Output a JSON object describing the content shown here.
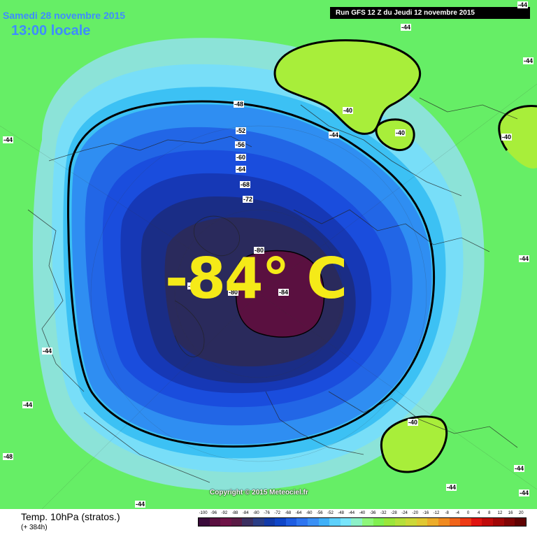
{
  "header": {
    "date": "Samedi 28 novembre 2015",
    "time": "13:00 locale",
    "run": "Run GFS 12 Z du Jeudi 12 novembre 2015"
  },
  "annotation": {
    "big_value": "-84° C"
  },
  "copyright": "Copyright © 2015 Meteociel.fr",
  "contour_labels": {
    "m44": "-44",
    "m48": "-48",
    "m52": "-52",
    "m56": "-56",
    "m60": "-60",
    "m64": "-64",
    "m68": "-68",
    "m72": "-72",
    "m76": "-76",
    "m80": "-80",
    "m84": "-84",
    "m40": "-40"
  },
  "footer": {
    "title": "Temp. 10hPa (stratos.)",
    "subtitle": "(+ 384h)"
  },
  "legend": {
    "ticks": [
      "-100",
      "-96",
      "-92",
      "-88",
      "-84",
      "-80",
      "-76",
      "-72",
      "-68",
      "-64",
      "-60",
      "-56",
      "-52",
      "-48",
      "-44",
      "-40",
      "-36",
      "-32",
      "-28",
      "-24",
      "-20",
      "-16",
      "-12",
      "-8",
      "-4",
      "0",
      "4",
      "8",
      "12",
      "16",
      "20"
    ],
    "colors": [
      "#3a0a3a",
      "#5a1040",
      "#6e1347",
      "#5a1b45",
      "#3c2f60",
      "#2a3d85",
      "#123aa8",
      "#0f46c8",
      "#1e5de2",
      "#2e75f0",
      "#3a90f5",
      "#3fb0f8",
      "#5dd0fb",
      "#78e5fb",
      "#8cf1c8",
      "#8df77a",
      "#80f050",
      "#9ae63a",
      "#b4e03a",
      "#ccd838",
      "#e0c832",
      "#ecac2a",
      "#f08a20",
      "#f0641a",
      "#ee3a14",
      "#e01410",
      "#c00a0a",
      "#a00606",
      "#800404",
      "#600202"
    ]
  },
  "colors": {
    "background": "#66ee66",
    "m40_zone": "#a8ee3a",
    "m44_zone": "#8ef07e",
    "m48_zone": "#8ce3d8",
    "m52_zone": "#78def8",
    "m56_zone": "#3cc1f4",
    "m60_zone": "#2f8ef2",
    "m64_zone": "#2266e6",
    "m68_zone": "#1a4ddd",
    "m72_zone": "#1638b6",
    "m76_zone": "#1a2d86",
    "m80_zone": "#2a2a5c",
    "m84_zone": "#5a1040",
    "annotation_text": "#f5ea18"
  }
}
